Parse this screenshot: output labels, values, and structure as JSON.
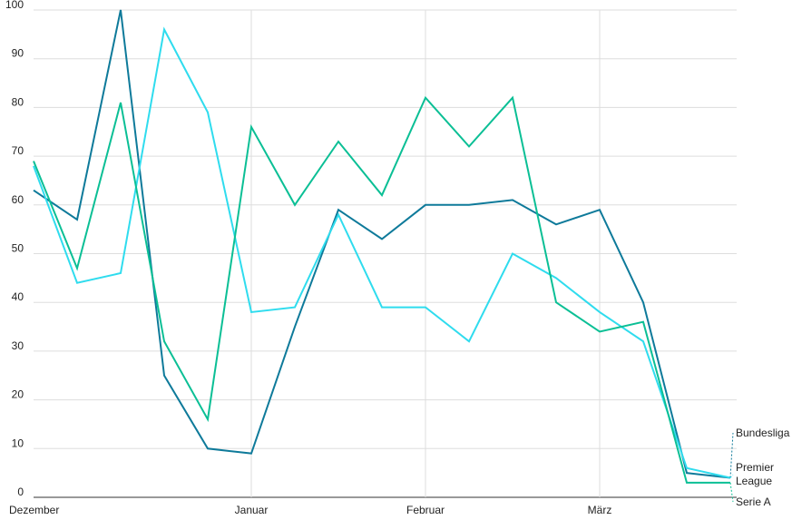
{
  "chart_data": {
    "type": "line",
    "categories": [
      "Dezember",
      null,
      null,
      null,
      null,
      "Januar",
      null,
      null,
      null,
      "Februar",
      null,
      null,
      null,
      "März",
      null,
      null,
      null
    ],
    "series": [
      {
        "name": "Bundesliga",
        "color": "#0e7a9a",
        "values": [
          63,
          57,
          100,
          25,
          10,
          9,
          35,
          59,
          53,
          60,
          60,
          61,
          56,
          59,
          40,
          5,
          4
        ]
      },
      {
        "name": "Premier League",
        "color": "#2fdcee",
        "values": [
          68,
          44,
          46,
          96,
          79,
          38,
          39,
          58,
          39,
          39,
          32,
          50,
          45,
          38,
          32,
          6,
          4
        ]
      },
      {
        "name": "Serie A",
        "color": "#0bbf95",
        "values": [
          69,
          47,
          81,
          32,
          16,
          76,
          60,
          73,
          62,
          82,
          72,
          82,
          40,
          34,
          36,
          3,
          3
        ]
      }
    ],
    "ylim": [
      0,
      100
    ],
    "yticks": [
      0,
      10,
      20,
      30,
      40,
      50,
      60,
      70,
      80,
      90,
      100
    ],
    "grid": true
  }
}
